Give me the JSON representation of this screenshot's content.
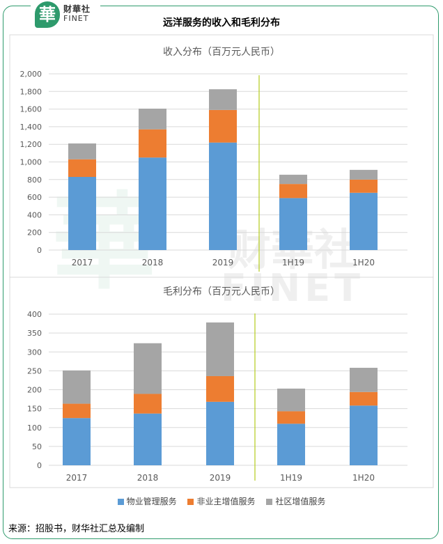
{
  "brand": {
    "logo_char": "華",
    "name_cn": "财華社",
    "name_en": "FINET"
  },
  "title": "远洋服务的收入和毛利分布",
  "source": "来源：招股书，财华社汇总及编制",
  "watermark": {
    "cn": "财華社",
    "en": "FINET",
    "char": "華"
  },
  "colors": {
    "s1": "#5b9bd5",
    "s2": "#ed7d31",
    "s3": "#a5a5a5",
    "divider": "#b5cc1a",
    "grid": "#d9d9d9",
    "frame": "#2e9a6c"
  },
  "legend": [
    "物业管理服务",
    "非业主增值服务",
    "社区增值服务"
  ],
  "chart_data": [
    {
      "type": "bar",
      "stacked": true,
      "title": "收入分布（百万元人民币）",
      "categories": [
        "2017",
        "2018",
        "2019",
        "1H19",
        "1H20"
      ],
      "series": [
        {
          "name": "物业管理服务",
          "values": [
            830,
            1050,
            1220,
            590,
            650
          ]
        },
        {
          "name": "非业主增值服务",
          "values": [
            200,
            320,
            370,
            160,
            150
          ]
        },
        {
          "name": "社区增值服务",
          "values": [
            180,
            235,
            235,
            105,
            110
          ]
        }
      ],
      "ylim": [
        0,
        2000
      ],
      "yticks": [
        "0",
        "200",
        "400",
        "600",
        "800",
        "1,000",
        "1,200",
        "1,400",
        "1,600",
        "1,800",
        "2,000"
      ],
      "grid": true
    },
    {
      "type": "bar",
      "stacked": true,
      "title": "毛利分布（百万元人民币）",
      "categories": [
        "2017",
        "2018",
        "2019",
        "1H19",
        "1H20"
      ],
      "series": [
        {
          "name": "物业管理服务",
          "values": [
            125,
            137,
            168,
            110,
            158
          ]
        },
        {
          "name": "非业主增值服务",
          "values": [
            38,
            52,
            68,
            33,
            36
          ]
        },
        {
          "name": "社区增值服务",
          "values": [
            88,
            134,
            142,
            60,
            64
          ]
        }
      ],
      "ylim": [
        0,
        400
      ],
      "yticks": [
        "0",
        "50",
        "100",
        "150",
        "200",
        "250",
        "300",
        "350",
        "400"
      ],
      "grid": true
    }
  ]
}
